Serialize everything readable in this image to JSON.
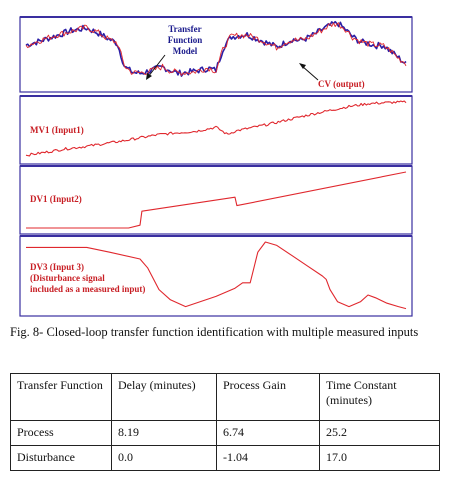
{
  "chart_data": [
    {
      "type": "line",
      "panel": "top",
      "annotations": [
        "Transfer Function Model",
        "CV (output)"
      ],
      "series": [
        {
          "name": "Transfer Function Model",
          "color": "#2a1ea6",
          "x": [
            0,
            4,
            8,
            12,
            16,
            19,
            22,
            24,
            26,
            28,
            30,
            33,
            36,
            38,
            40,
            44,
            48,
            50,
            52,
            54,
            58,
            62,
            66,
            68,
            70,
            72,
            74,
            76,
            78,
            80,
            82,
            84,
            86,
            88,
            90,
            92,
            94,
            96,
            98,
            100
          ],
          "y": [
            0.65,
            0.72,
            0.8,
            0.88,
            0.92,
            0.84,
            0.74,
            0.68,
            0.3,
            0.22,
            0.2,
            0.25,
            0.3,
            0.25,
            0.2,
            0.23,
            0.28,
            0.25,
            0.62,
            0.78,
            0.82,
            0.72,
            0.62,
            0.68,
            0.74,
            0.72,
            0.76,
            0.82,
            0.9,
            0.96,
            1.0,
            0.9,
            0.78,
            0.7,
            0.68,
            0.64,
            0.65,
            0.55,
            0.45,
            0.35
          ]
        },
        {
          "name": "CV (output)",
          "color": "#e0282e",
          "x": [
            0,
            4,
            8,
            12,
            16,
            19,
            22,
            24,
            26,
            28,
            30,
            33,
            36,
            38,
            40,
            44,
            48,
            50,
            52,
            54,
            58,
            62,
            66,
            68,
            70,
            72,
            74,
            76,
            78,
            80,
            82,
            84,
            86,
            88,
            90,
            92,
            94,
            96,
            98,
            100
          ],
          "y": [
            0.64,
            0.73,
            0.81,
            0.87,
            0.93,
            0.85,
            0.73,
            0.69,
            0.31,
            0.21,
            0.21,
            0.24,
            0.31,
            0.24,
            0.21,
            0.22,
            0.29,
            0.24,
            0.61,
            0.79,
            0.81,
            0.73,
            0.61,
            0.69,
            0.73,
            0.73,
            0.75,
            0.83,
            0.89,
            0.97,
            0.99,
            0.91,
            0.77,
            0.71,
            0.67,
            0.65,
            0.64,
            0.56,
            0.44,
            0.36
          ]
        }
      ]
    },
    {
      "type": "line",
      "panel": "mv1",
      "label": "MV1 (Input1)",
      "series": [
        {
          "name": "MV1 (Input1)",
          "color": "#e0282e",
          "x": [
            0,
            5,
            10,
            15,
            20,
            25,
            30,
            35,
            40,
            45,
            50,
            53,
            55,
            60,
            65,
            70,
            75,
            80,
            85,
            90,
            95,
            100
          ],
          "y": [
            0.05,
            0.1,
            0.16,
            0.2,
            0.25,
            0.3,
            0.36,
            0.42,
            0.45,
            0.48,
            0.55,
            0.42,
            0.48,
            0.55,
            0.62,
            0.7,
            0.78,
            0.85,
            0.92,
            0.97,
            0.99,
            1.0
          ]
        }
      ]
    },
    {
      "type": "line",
      "panel": "dv1",
      "label": "DV1 (Input2)",
      "series": [
        {
          "name": "DV1 (Input2)",
          "color": "#e0282e",
          "x": [
            0,
            27,
            30,
            30.5,
            55,
            55.5,
            100
          ],
          "y": [
            0.0,
            0.0,
            0.05,
            0.3,
            0.55,
            0.4,
            1.0
          ]
        }
      ]
    },
    {
      "type": "line",
      "panel": "dv3",
      "label": "DV3 (Input 3)",
      "annotations": [
        "(Disturbance signal",
        "included as a measured input)"
      ],
      "series": [
        {
          "name": "DV3 (Input 3)",
          "color": "#e0282e",
          "x": [
            0,
            16,
            22,
            30,
            32,
            35,
            38,
            42,
            50,
            55,
            57,
            59,
            61,
            63,
            66,
            70,
            74,
            78,
            79,
            80,
            82,
            85,
            88,
            90,
            92,
            95,
            98,
            100
          ],
          "y": [
            0.92,
            0.92,
            0.85,
            0.75,
            0.62,
            0.3,
            0.15,
            0.05,
            0.2,
            0.32,
            0.4,
            0.4,
            0.85,
            1.0,
            0.95,
            0.8,
            0.65,
            0.5,
            0.45,
            0.3,
            0.12,
            0.05,
            0.12,
            0.22,
            0.18,
            0.1,
            0.05,
            0.02
          ]
        }
      ]
    }
  ],
  "caption": "Fig. 8- Closed-loop transfer function identification with multiple measured inputs",
  "table": {
    "headers": [
      "Transfer Function",
      "Delay (minutes)",
      "Process Gain",
      "Time Constant (minutes)"
    ],
    "rows": [
      [
        "Process",
        "8.19",
        "6.74",
        "25.2"
      ],
      [
        "Disturbance",
        "0.0",
        "-1.04",
        "17.0"
      ]
    ]
  },
  "colors": {
    "panel_border": "#3a2fa0",
    "signal_red": "#e0282e",
    "model_blue": "#2a1ea6"
  }
}
